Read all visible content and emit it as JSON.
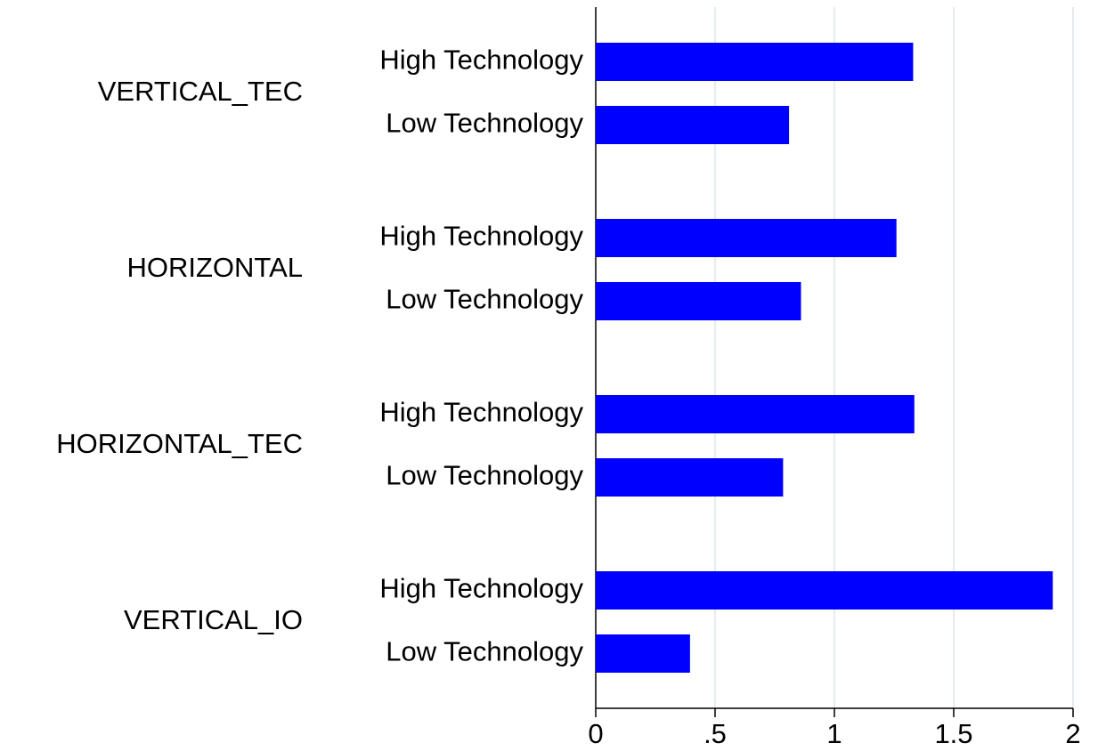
{
  "chart_data": {
    "type": "bar",
    "orientation": "horizontal",
    "color": "#0000ff",
    "grid": true,
    "groups": [
      {
        "name": "VERTICAL_TEC",
        "categories": [
          "High Technology",
          "Low Technology"
        ],
        "values": [
          1.33,
          0.81
        ]
      },
      {
        "name": "HORIZONTAL",
        "categories": [
          "High Technology",
          "Low Technology"
        ],
        "values": [
          1.26,
          0.86
        ]
      },
      {
        "name": "HORIZONTAL_TEC",
        "categories": [
          "High Technology",
          "Low Technology"
        ],
        "values": [
          1.335,
          0.785
        ]
      },
      {
        "name": "VERTICAL_IO",
        "categories": [
          "High Technology",
          "Low Technology"
        ],
        "values": [
          1.915,
          0.395
        ]
      }
    ],
    "xlim": [
      0,
      2
    ],
    "xticks": [
      0,
      {
        "value": 0.5,
        "label": ".5"
      },
      1,
      1.5,
      2
    ]
  }
}
